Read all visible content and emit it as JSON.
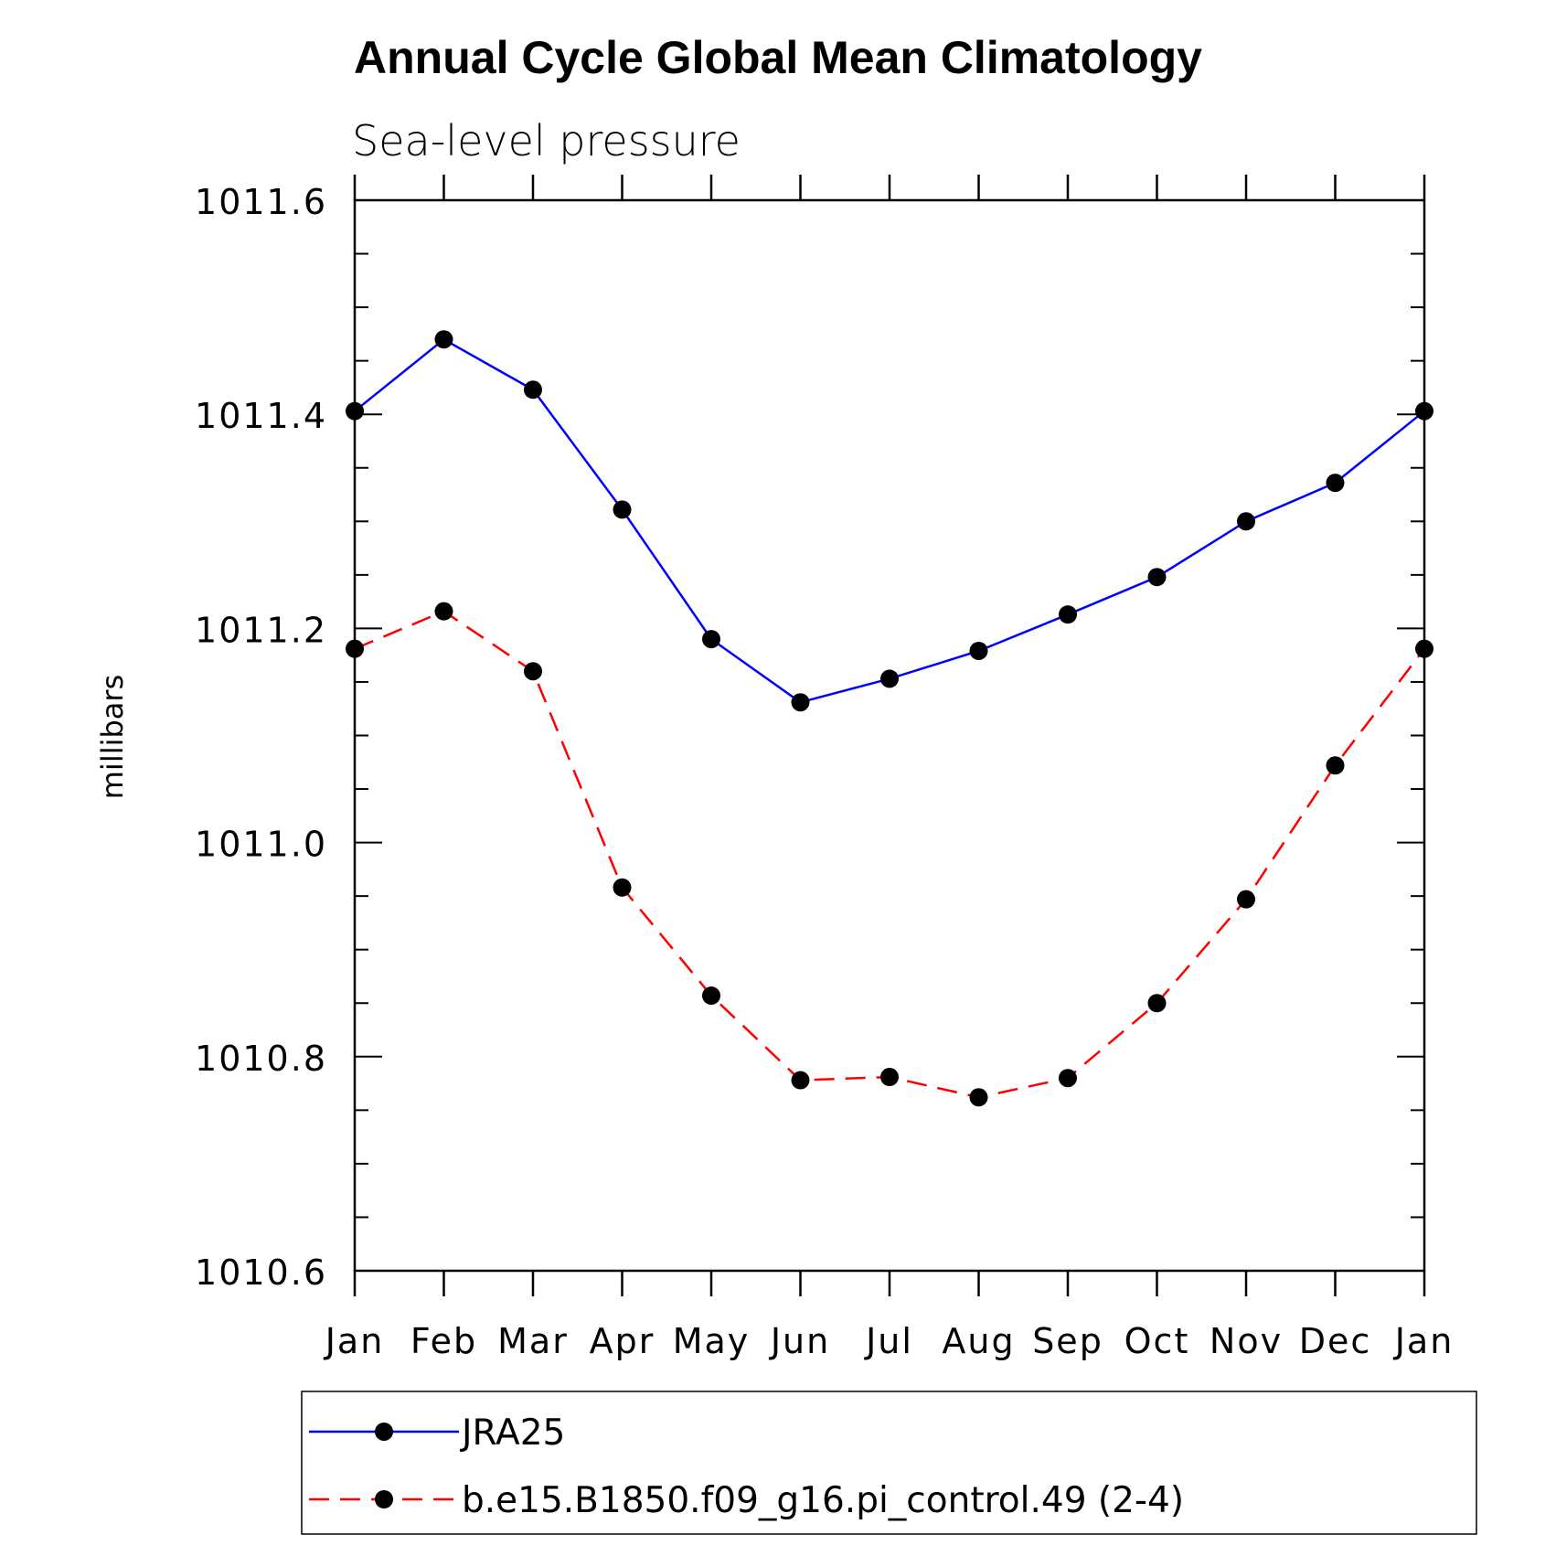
{
  "chart_data": {
    "type": "line",
    "title": "Annual Cycle Global Mean Climatology",
    "subtitle": "Sea-level pressure",
    "xlabel": "",
    "ylabel": "millibars",
    "categories": [
      "Jan",
      "Feb",
      "Mar",
      "Apr",
      "May",
      "Jun",
      "Jul",
      "Aug",
      "Sep",
      "Oct",
      "Nov",
      "Dec",
      "Jan"
    ],
    "ylim": [
      1010.6,
      1011.6
    ],
    "yticks": [
      "1011.6",
      "1011.4",
      "1011.2",
      "1011.0",
      "1010.8",
      "1010.6"
    ],
    "grid": false,
    "legend_position": "bottom",
    "series": [
      {
        "name": "JRA25",
        "color": "#0000ff",
        "line_style": "solid",
        "marker": "filled-circle",
        "values": [
          1011.403,
          1011.47,
          1011.423,
          1011.311,
          1011.19,
          1011.131,
          1011.153,
          1011.179,
          1011.213,
          1011.248,
          1011.3,
          1011.336,
          1011.403
        ]
      },
      {
        "name": "b.e15.B1850.f09_g16.pi_control.49 (2-4)",
        "color": "#ff0000",
        "line_style": "dashed",
        "marker": "filled-circle",
        "values": [
          1011.181,
          1011.216,
          1011.16,
          1010.958,
          1010.857,
          1010.778,
          1010.781,
          1010.762,
          1010.78,
          1010.85,
          1010.947,
          1011.072,
          1011.181
        ]
      }
    ]
  }
}
